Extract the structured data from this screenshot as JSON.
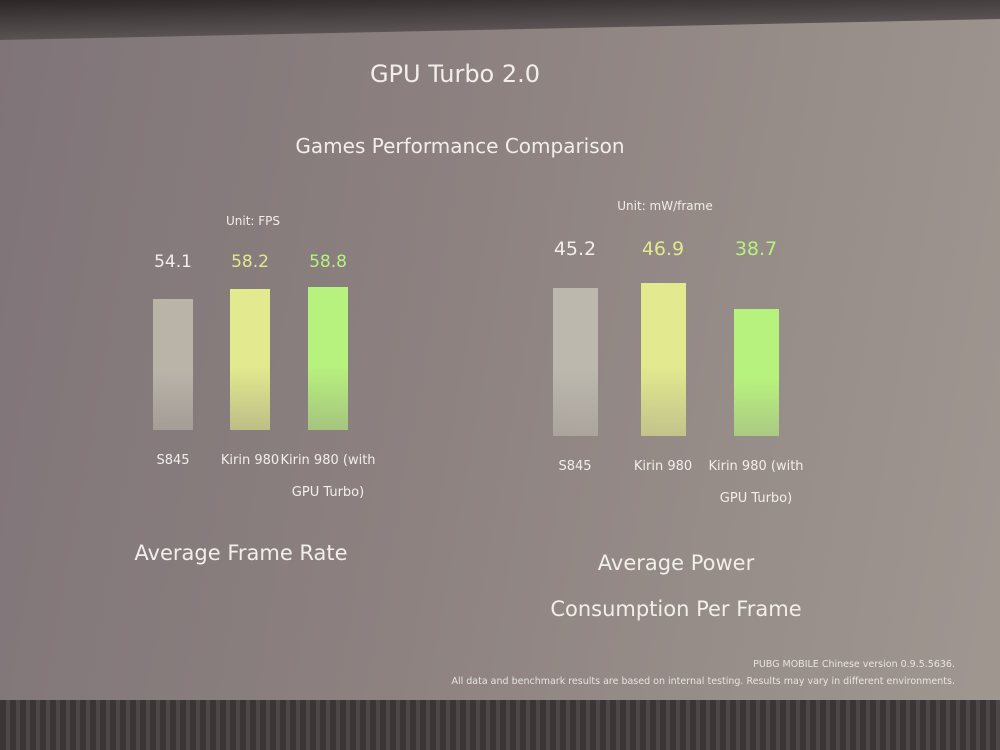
{
  "title": "GPU Turbo 2.0",
  "subtitle": "Games Performance Comparison",
  "chart_data": [
    {
      "type": "bar",
      "unit": "Unit: FPS",
      "title": "Average Frame Rate",
      "categories": [
        "S845",
        "Kirin 980",
        "Kirin 980 (with GPU Turbo)"
      ],
      "values": [
        54.1,
        58.2,
        58.8
      ],
      "colors": [
        "#b9b3a8",
        "#e2e98e",
        "#b8f27e"
      ],
      "ylim": [
        0,
        66
      ]
    },
    {
      "type": "bar",
      "unit": "Unit: mW/frame",
      "title": "Average Power Consumption Per Frame",
      "categories": [
        "S845",
        "Kirin 980",
        "Kirin 980 (with GPU Turbo)"
      ],
      "values": [
        45.2,
        46.9,
        38.7
      ],
      "colors": [
        "#bcb8ae",
        "#e2e98e",
        "#b8f27e"
      ],
      "ylim": [
        0,
        52
      ]
    }
  ],
  "footnotes": [
    "PUBG MOBILE Chinese version 0.9.5.5636.",
    "All data and benchmark results are based on internal testing. Results may vary in different environments."
  ]
}
